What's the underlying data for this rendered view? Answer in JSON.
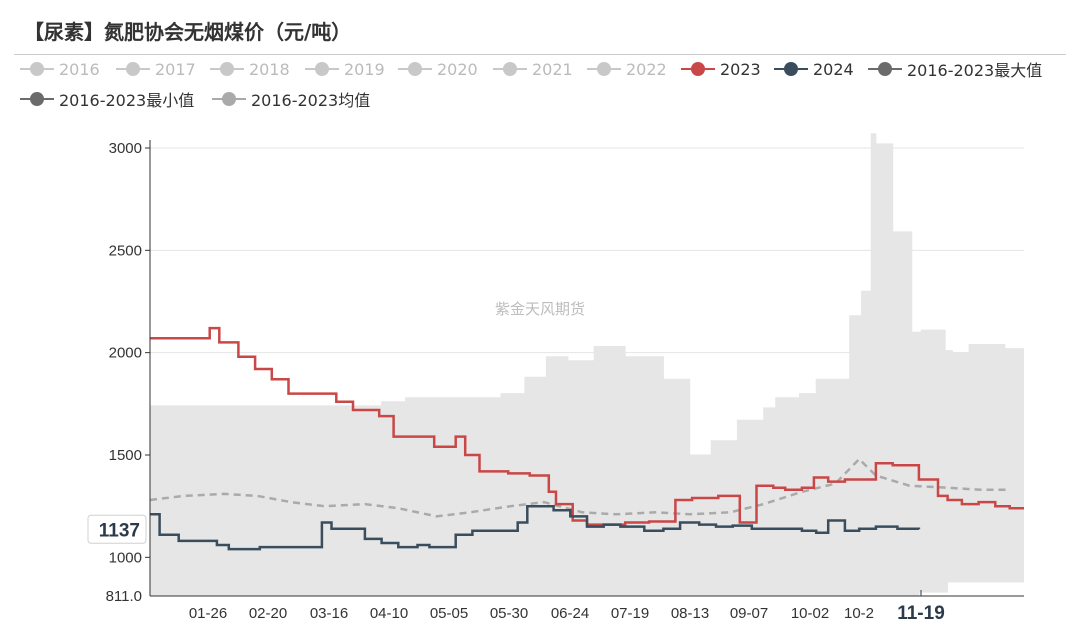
{
  "title": "【尿素】氮肥协会无烟煤价（元/吨）",
  "watermark": "紫金天风期货",
  "colors": {
    "inactive": "#c8c8c8",
    "s2023": "#c94747",
    "s2024": "#3a4d5c",
    "max": "#6b6b6b",
    "min": "#6b6b6b",
    "avg": "#aaaaaa",
    "band": "#e6e6e6",
    "axis": "#333333",
    "grid": "#e4e4e4",
    "label": "#333333",
    "highlight": "#2b3a4a"
  },
  "legend": [
    {
      "name": "2016",
      "active": false
    },
    {
      "name": "2017",
      "active": false
    },
    {
      "name": "2018",
      "active": false
    },
    {
      "name": "2019",
      "active": false
    },
    {
      "name": "2020",
      "active": false
    },
    {
      "name": "2021",
      "active": false
    },
    {
      "name": "2022",
      "active": false
    },
    {
      "name": "2023",
      "active": true,
      "color_key": "s2023"
    },
    {
      "name": "2024",
      "active": true,
      "color_key": "s2024"
    },
    {
      "name": "2016-2023最大值",
      "active": true,
      "color_key": "max"
    },
    {
      "name": "2016-2023最小值",
      "active": true,
      "color_key": "min"
    },
    {
      "name": "2016-2023均值",
      "active": true,
      "color_key": "avg"
    }
  ],
  "chart_data": {
    "type": "line",
    "x_ticks": [
      "01-26",
      "02-20",
      "03-16",
      "04-10",
      "05-05",
      "05-30",
      "06-24",
      "07-19",
      "08-13",
      "09-07",
      "10-02",
      "10-2",
      "11-19"
    ],
    "y_ticks": [
      3000,
      2500,
      2000,
      1500,
      1000
    ],
    "y_axis_min_label": "811.0",
    "ylim": [
      811,
      3000
    ],
    "highlight_x_label": "11-19",
    "highlight_y_label": "1137",
    "series": [
      {
        "name": "2023",
        "style": "step",
        "x": [
          "01-01",
          "01-26",
          "01-30",
          "02-07",
          "02-14",
          "02-21",
          "02-28",
          "03-06",
          "03-20",
          "03-27",
          "04-07",
          "04-13",
          "04-30",
          "05-09",
          "05-13",
          "05-19",
          "05-31",
          "06-09",
          "06-17",
          "06-20",
          "06-27",
          "07-03",
          "07-12",
          "07-19",
          "07-29",
          "08-09",
          "08-16",
          "08-27",
          "09-05",
          "09-12",
          "09-19",
          "09-24",
          "10-01",
          "10-06",
          "10-12",
          "10-19",
          "11-01",
          "11-08",
          "11-19",
          "11-27",
          "12-01",
          "12-07",
          "12-14",
          "12-21",
          "12-27"
        ],
        "y": [
          2070,
          2120,
          2050,
          1980,
          1920,
          1870,
          1800,
          1800,
          1760,
          1720,
          1690,
          1590,
          1540,
          1590,
          1500,
          1420,
          1410,
          1400,
          1320,
          1260,
          1180,
          1160,
          1160,
          1170,
          1175,
          1280,
          1290,
          1300,
          1170,
          1350,
          1340,
          1330,
          1340,
          1390,
          1370,
          1380,
          1460,
          1450,
          1380,
          1300,
          1280,
          1260,
          1270,
          1250,
          1240
        ]
      },
      {
        "name": "2024",
        "style": "step",
        "x": [
          "01-01",
          "01-05",
          "01-13",
          "01-29",
          "02-03",
          "02-16",
          "03-05",
          "03-14",
          "03-18",
          "04-01",
          "04-08",
          "04-15",
          "04-23",
          "04-28",
          "05-09",
          "05-16",
          "05-27",
          "06-04",
          "06-08",
          "06-19",
          "06-26",
          "07-03",
          "07-10",
          "07-17",
          "07-27",
          "08-04",
          "08-11",
          "08-19",
          "08-26",
          "09-02",
          "09-10",
          "09-20",
          "10-01",
          "10-07",
          "10-12",
          "10-19",
          "10-25",
          "11-01",
          "11-10",
          "11-19"
        ],
        "y": [
          1210,
          1110,
          1080,
          1060,
          1040,
          1050,
          1050,
          1170,
          1140,
          1090,
          1070,
          1050,
          1060,
          1050,
          1110,
          1130,
          1130,
          1170,
          1250,
          1230,
          1200,
          1150,
          1160,
          1150,
          1130,
          1140,
          1170,
          1160,
          1150,
          1155,
          1140,
          1140,
          1130,
          1120,
          1180,
          1130,
          1140,
          1150,
          1140,
          1137
        ]
      },
      {
        "name": "2016-2023最大值",
        "style": "step",
        "x": [
          "01-01",
          "04-08",
          "04-18",
          "05-28",
          "06-07",
          "06-16",
          "06-25",
          "07-06",
          "07-19",
          "08-04",
          "08-15",
          "08-24",
          "09-04",
          "09-15",
          "09-20",
          "09-30",
          "10-07",
          "10-14",
          "10-21",
          "10-26",
          "10-30",
          "11-01",
          "11-08",
          "11-16",
          "11-20",
          "11-30",
          "12-03",
          "12-10",
          "12-18",
          "12-25"
        ],
        "y": [
          1740,
          1760,
          1780,
          1800,
          1880,
          1980,
          1960,
          2030,
          1980,
          1870,
          1500,
          1570,
          1670,
          1730,
          1780,
          1800,
          1870,
          1870,
          2180,
          2300,
          3070,
          3020,
          2590,
          2100,
          2110,
          2010,
          2000,
          2040,
          2040,
          2020
        ]
      },
      {
        "name": "2016-2023最小值",
        "style": "step",
        "x": [
          "01-01",
          "11-10",
          "11-19",
          "12-01"
        ],
        "y": [
          811,
          811,
          830,
          880
        ]
      },
      {
        "name": "2016-2023均值",
        "style": "dashed",
        "x": [
          "01-01",
          "01-15",
          "02-01",
          "02-15",
          "03-01",
          "03-15",
          "04-01",
          "04-15",
          "05-01",
          "05-15",
          "06-01",
          "06-15",
          "07-01",
          "07-15",
          "08-01",
          "08-15",
          "09-01",
          "09-15",
          "10-01",
          "10-15",
          "10-25",
          "11-01",
          "11-15",
          "12-01",
          "12-15",
          "12-27"
        ],
        "y": [
          1280,
          1300,
          1310,
          1300,
          1270,
          1250,
          1260,
          1240,
          1200,
          1220,
          1250,
          1270,
          1220,
          1210,
          1220,
          1210,
          1220,
          1260,
          1320,
          1360,
          1480,
          1400,
          1350,
          1340,
          1330,
          1330
        ]
      }
    ]
  }
}
